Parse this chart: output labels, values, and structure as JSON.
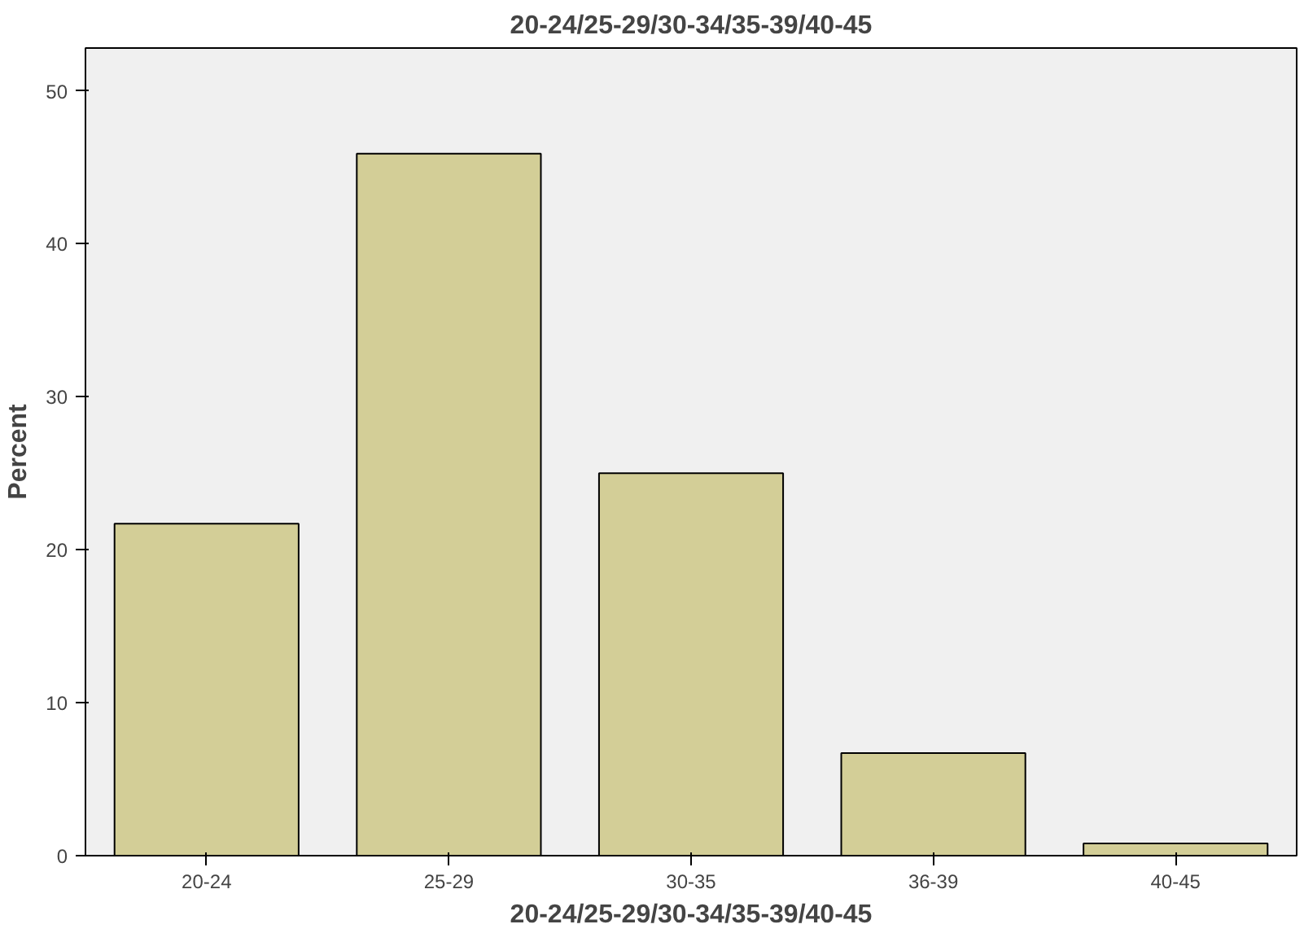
{
  "chart_data": {
    "type": "bar",
    "title": "20-24/25-29/30-34/35-39/40-45",
    "xlabel": "20-24/25-29/30-34/35-39/40-45",
    "ylabel": "Percent",
    "categories": [
      "20-24",
      "25-29",
      "30-35",
      "36-39",
      "40-45"
    ],
    "values": [
      21.7,
      45.9,
      25.0,
      6.7,
      0.8
    ],
    "color": "#d3ce97",
    "ylim": [
      0,
      52.8
    ],
    "yticks": [
      0,
      10,
      20,
      30,
      40,
      50
    ],
    "grid": false
  }
}
